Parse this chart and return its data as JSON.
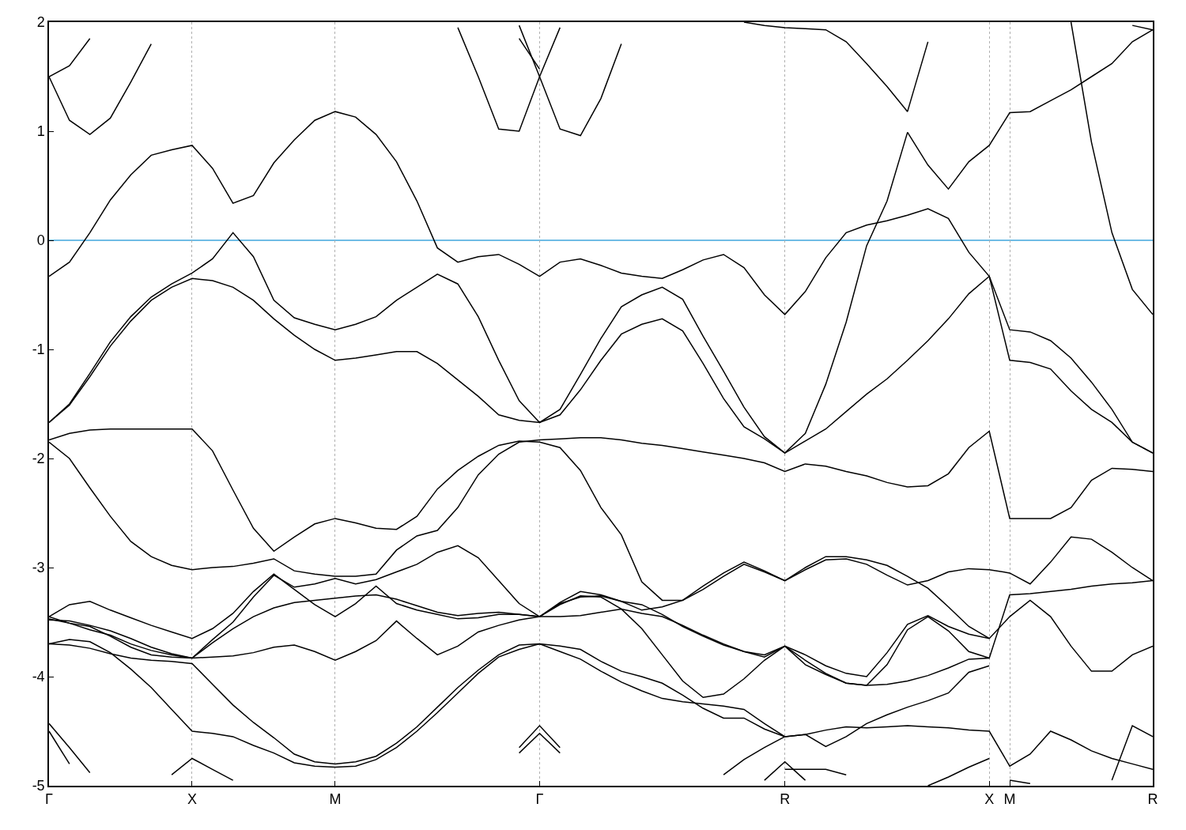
{
  "chart_data": {
    "type": "line",
    "categories": [
      "Γ",
      null,
      null,
      null,
      null,
      null,
      null,
      "X",
      null,
      null,
      null,
      null,
      null,
      null,
      "M",
      null,
      null,
      null,
      null,
      null,
      null,
      null,
      null,
      null,
      "Γ",
      null,
      null,
      null,
      null,
      null,
      null,
      null,
      null,
      null,
      null,
      null,
      "R",
      null,
      null,
      null,
      null,
      null,
      null,
      null,
      null,
      null,
      "X",
      "M",
      null,
      null,
      null,
      null,
      null,
      null,
      "R"
    ],
    "ylim": [
      -5,
      2
    ],
    "yticks": [
      -5,
      -4,
      -3,
      -2,
      -1,
      0,
      1,
      2
    ],
    "grid": "x",
    "ref_lines": [
      {
        "axis": "y",
        "value": 0,
        "color": "#3fa6dc"
      }
    ],
    "series": [
      {
        "color": "#000000",
        "values": [
          -0.33,
          -0.2,
          0.07,
          0.37,
          0.6,
          0.78,
          0.83,
          0.87,
          0.66,
          0.34,
          0.41,
          0.71,
          0.92,
          1.1,
          1.18,
          1.13,
          0.97,
          0.72,
          0.36,
          -0.07,
          -0.2,
          -0.15,
          -0.13,
          -0.22,
          -0.33,
          -0.2,
          -0.17,
          -0.23,
          -0.3,
          -0.33,
          -0.35,
          -0.27,
          -0.18,
          -0.13,
          -0.25,
          -0.5,
          -0.68,
          -0.47,
          -0.16,
          0.07,
          0.14,
          0.18,
          0.23,
          0.29,
          0.2,
          -0.11,
          -0.33,
          -0.82,
          -0.84,
          -0.92,
          -1.08,
          -1.3,
          -1.55,
          -1.85,
          -1.95
        ]
      },
      {
        "color": "#000000",
        "values": [
          -1.67,
          -1.5,
          -1.22,
          -0.93,
          -0.7,
          -0.52,
          -0.4,
          -0.3,
          -0.17,
          0.07,
          -0.15,
          -0.55,
          -0.71,
          -0.77,
          -0.82,
          -0.77,
          -0.7,
          -0.55,
          -0.43,
          -0.31,
          -0.4,
          -0.7,
          -1.1,
          -1.47,
          -1.67,
          -1.55,
          -1.23,
          -0.9,
          -0.61,
          -0.5,
          -0.43,
          -0.54,
          -0.88,
          -1.2,
          -1.53,
          -1.8,
          -1.95,
          -1.84,
          -1.73,
          -1.57,
          -1.41,
          -1.27,
          -1.1,
          -0.92,
          -0.72,
          -0.49,
          -0.33,
          -1.1,
          -1.12,
          -1.18,
          -1.38,
          -1.55,
          -1.67,
          -1.85,
          -1.95
        ]
      },
      {
        "color": "#000000",
        "values": [
          -1.67,
          -1.51,
          -1.25,
          -0.97,
          -0.74,
          -0.55,
          -0.43,
          -0.35,
          -0.37,
          -0.43,
          -0.55,
          -0.72,
          -0.87,
          -1.0,
          -1.1,
          -1.08,
          -1.05,
          -1.02,
          -1.02,
          -1.13,
          -1.28,
          -1.43,
          -1.6,
          -1.65,
          -1.67,
          -1.6,
          -1.37,
          -1.1,
          -0.86,
          -0.77,
          -0.72,
          -0.83,
          -1.13,
          -1.45,
          -1.71,
          -1.82,
          -1.95,
          -1.77,
          -1.32,
          -0.75,
          -0.05,
          0.36,
          0.99,
          0.69,
          0.47,
          0.72,
          0.87,
          1.17,
          1.18,
          1.28,
          1.38,
          1.5,
          1.62,
          1.82,
          1.93
        ]
      },
      {
        "color": "#000000",
        "values": [
          -1.83,
          -1.77,
          -1.74,
          -1.73,
          -1.73,
          -1.73,
          -1.73,
          -1.73,
          -1.93,
          -2.29,
          -2.64,
          -2.85,
          -2.72,
          -2.6,
          -2.55,
          -2.59,
          -2.64,
          -2.65,
          -2.53,
          -2.28,
          -2.11,
          -1.98,
          -1.88,
          -1.84,
          -1.85,
          -1.9,
          -2.11,
          -2.45,
          -2.7,
          -3.13,
          -3.3,
          -3.3,
          -3.2,
          -3.08,
          -2.97,
          -3.04,
          -3.12,
          -3.02,
          -2.93,
          -2.92,
          -2.97,
          -3.07,
          -3.16,
          -3.12,
          -3.04,
          -3.01,
          -3.02,
          -3.05,
          -3.15,
          -2.95,
          -2.72,
          -2.74,
          -2.86,
          -3.0,
          -3.12
        ]
      },
      {
        "color": "#000000",
        "values": [
          -1.85,
          -2.0,
          -2.27,
          -2.53,
          -2.76,
          -2.9,
          -2.98,
          -3.02,
          -3.0,
          -2.99,
          -2.96,
          -2.92,
          -3.03,
          -3.06,
          -3.08,
          -3.08,
          -3.06,
          -2.84,
          -2.71,
          -2.66,
          -2.45,
          -2.15,
          -1.96,
          -1.85,
          -1.83,
          -1.82,
          -1.81,
          -1.81,
          -1.83,
          -1.86,
          -1.88,
          -1.91,
          -1.94,
          -1.97,
          -2.0,
          -2.04,
          -2.12,
          -2.05,
          -2.07,
          -2.12,
          -2.16,
          -2.22,
          -2.26,
          -2.25,
          -2.14,
          -1.9,
          -1.75,
          -2.55,
          -2.55,
          -2.55,
          -2.45,
          -2.2,
          -2.09,
          -2.1,
          -2.12
        ]
      },
      {
        "color": "#000000",
        "values": [
          -3.45,
          -3.34,
          -3.31,
          -3.39,
          -3.46,
          -3.53,
          -3.59,
          -3.65,
          -3.56,
          -3.42,
          -3.22,
          -3.06,
          -3.2,
          -3.34,
          -3.45,
          -3.33,
          -3.17,
          -3.33,
          -3.39,
          -3.43,
          -3.47,
          -3.46,
          -3.43,
          -3.43,
          -3.45,
          -3.33,
          -3.27,
          -3.26,
          -3.31,
          -3.34,
          -3.43,
          -3.54,
          -3.63,
          -3.71,
          -3.77,
          -3.8,
          -3.72,
          -3.8,
          -3.9,
          -3.97,
          -4.0,
          -3.78,
          -3.52,
          -3.44,
          -3.54,
          -3.61,
          -3.65,
          -3.45,
          -3.3,
          -3.45,
          -3.72,
          -3.95,
          -3.95,
          -3.8,
          -3.72
        ]
      },
      {
        "color": "#000000",
        "values": [
          -3.48,
          -3.49,
          -3.53,
          -3.58,
          -3.65,
          -3.73,
          -3.79,
          -3.83,
          -3.69,
          -3.56,
          -3.45,
          -3.37,
          -3.32,
          -3.3,
          -3.28,
          -3.26,
          -3.25,
          -3.29,
          -3.35,
          -3.41,
          -3.44,
          -3.42,
          -3.41,
          -3.43,
          -3.45,
          -3.45,
          -3.44,
          -3.41,
          -3.38,
          -3.42,
          -3.45,
          -3.53,
          -3.62,
          -3.7,
          -3.77,
          -3.82,
          -3.72,
          -3.89,
          -3.98,
          -4.06,
          -4.08,
          -4.07,
          -4.04,
          -3.99,
          -3.92,
          -3.84,
          -3.83,
          -3.25,
          -3.24,
          -3.22,
          -3.2,
          -3.17,
          -3.15,
          -3.14,
          -3.12
        ]
      },
      {
        "color": "#000000",
        "values": [
          -3.7,
          -3.71,
          -3.74,
          -3.79,
          -3.83,
          -3.85,
          -3.86,
          -3.88,
          -4.07,
          -4.26,
          -4.42,
          -4.56,
          -4.71,
          -4.78,
          -4.8,
          -4.78,
          -4.73,
          -4.61,
          -4.46,
          -4.28,
          -4.1,
          -3.94,
          -3.8,
          -3.71,
          -3.7,
          -3.77,
          -3.84,
          -3.95,
          -4.05,
          -4.13,
          -4.2,
          -4.23,
          -4.25,
          -4.27,
          -4.3,
          -4.43,
          -4.55,
          -4.53,
          -4.49,
          -4.46,
          -4.47,
          -4.46,
          -4.45,
          -4.46,
          -4.47,
          -4.49,
          -4.5,
          -4.82,
          -4.71,
          -4.5,
          -4.58,
          -4.68,
          -4.75,
          -4.8,
          -4.85
        ]
      },
      {
        "color": "#000000",
        "values": [
          -3.7,
          -3.66,
          -3.68,
          -3.78,
          -3.93,
          -4.1,
          -4.3,
          -4.5,
          -4.52,
          -4.55,
          -4.63,
          -4.7,
          -4.79,
          -4.82,
          -4.83,
          -4.82,
          -4.76,
          -4.65,
          -4.5,
          -4.33,
          -4.15,
          -3.97,
          -3.82,
          -3.75,
          -3.7,
          -3.72,
          -3.75,
          -3.86,
          -3.95,
          -4.0,
          -4.06,
          -4.17,
          -4.29,
          -4.38,
          -4.38,
          -4.48,
          -4.55,
          -4.53,
          -4.64,
          -4.55,
          -4.43,
          -4.35,
          -4.28,
          -4.22,
          -4.15,
          -3.96,
          -3.9,
          null,
          null,
          null,
          null,
          null,
          null,
          null,
          null
        ]
      },
      {
        "color": "#000000",
        "values": [
          -3.47,
          -3.51,
          -3.54,
          -3.63,
          -3.73,
          -3.8,
          -3.82,
          -3.83,
          -3.82,
          -3.81,
          -3.78,
          -3.73,
          -3.71,
          -3.77,
          -3.85,
          -3.77,
          -3.67,
          -3.49,
          -3.65,
          -3.8,
          -3.72,
          -3.59,
          -3.53,
          -3.48,
          -3.45,
          -3.34,
          -3.26,
          -3.27,
          -3.38,
          -3.56,
          -3.8,
          -4.04,
          -4.19,
          -4.16,
          -4.02,
          -3.85,
          -3.72,
          -3.85,
          -3.97,
          -4.06,
          -4.08,
          -3.89,
          -3.57,
          -3.45,
          -3.58,
          -3.77,
          -3.83,
          null,
          null,
          null,
          null,
          null,
          null,
          null,
          null
        ]
      },
      {
        "color": "#000000",
        "values": [
          -3.45,
          -3.51,
          -3.57,
          -3.62,
          -3.7,
          -3.76,
          -3.8,
          -3.83,
          -3.66,
          -3.5,
          -3.27,
          -3.07,
          -3.18,
          -3.15,
          -3.1,
          -3.15,
          -3.11,
          -3.04,
          -2.97,
          -2.86,
          -2.8,
          -2.91,
          -3.12,
          -3.33,
          -3.45,
          -3.32,
          -3.22,
          -3.25,
          -3.31,
          -3.39,
          -3.36,
          -3.3,
          -3.17,
          -3.05,
          -2.95,
          -3.03,
          -3.12,
          -3.0,
          -2.9,
          -2.9,
          -2.93,
          -2.98,
          -3.08,
          -3.19,
          -3.36,
          -3.54,
          -3.65,
          null,
          null,
          null,
          null,
          null,
          null,
          null,
          null
        ]
      },
      {
        "color": "#000000",
        "values": [
          1.5,
          1.1,
          0.97,
          1.12,
          1.45,
          1.8,
          null,
          null,
          null,
          null,
          null,
          null,
          null,
          null,
          null,
          null,
          null,
          null,
          null,
          null,
          null,
          null,
          null,
          null,
          null,
          null,
          null,
          null,
          null,
          null,
          null,
          null,
          null,
          null,
          null,
          null,
          null,
          null,
          null,
          null,
          null,
          null,
          null,
          null,
          null,
          null,
          null,
          null,
          null,
          null,
          null,
          null,
          null,
          null,
          null
        ]
      },
      {
        "color": "#000000",
        "values": [
          1.5,
          1.6,
          1.85,
          null,
          null,
          null,
          null,
          null,
          null,
          null,
          null,
          null,
          null,
          null,
          null,
          null,
          null,
          null,
          null,
          null,
          null,
          null,
          null,
          null,
          null,
          null,
          null,
          null,
          null,
          null,
          null,
          null,
          null,
          null,
          null,
          null,
          null,
          null,
          null,
          null,
          null,
          null,
          null,
          null,
          null,
          null,
          null,
          null,
          null,
          null,
          null,
          null,
          null,
          null,
          null
        ]
      },
      {
        "color": "#000000",
        "values": [
          null,
          null,
          null,
          null,
          null,
          null,
          null,
          null,
          null,
          null,
          null,
          null,
          null,
          null,
          null,
          null,
          null,
          null,
          null,
          null,
          1.95,
          1.5,
          1.02,
          1.0,
          1.5,
          1.95,
          null,
          null,
          null,
          null,
          null,
          null,
          null,
          null,
          null,
          null,
          null,
          null,
          null,
          null,
          null,
          null,
          null,
          null,
          null,
          null,
          null,
          null,
          null,
          null,
          null,
          null,
          null,
          null,
          null
        ]
      },
      {
        "color": "#000000",
        "values": [
          null,
          null,
          null,
          null,
          null,
          null,
          null,
          null,
          null,
          null,
          null,
          null,
          null,
          null,
          null,
          null,
          null,
          null,
          null,
          null,
          null,
          null,
          null,
          1.97,
          1.5,
          1.02,
          0.96,
          1.3,
          1.8,
          null,
          null,
          null,
          null,
          null,
          null,
          null,
          null,
          null,
          null,
          null,
          null,
          null,
          null,
          null,
          null,
          null,
          null,
          null,
          null,
          null,
          null,
          null,
          null,
          null,
          null
        ]
      },
      {
        "color": "#000000",
        "values": [
          null,
          null,
          null,
          null,
          null,
          null,
          null,
          null,
          null,
          null,
          null,
          null,
          null,
          null,
          null,
          null,
          null,
          null,
          null,
          null,
          null,
          null,
          null,
          1.85,
          1.57,
          null,
          null,
          null,
          null,
          null,
          null,
          null,
          null,
          null,
          null,
          null,
          null,
          null,
          null,
          null,
          null,
          null,
          null,
          null,
          null,
          null,
          null,
          null,
          null,
          null,
          null,
          null,
          null,
          null,
          null
        ]
      },
      {
        "color": "#000000",
        "values": [
          null,
          null,
          null,
          null,
          null,
          null,
          null,
          null,
          null,
          null,
          null,
          null,
          null,
          null,
          null,
          null,
          null,
          null,
          null,
          null,
          null,
          null,
          null,
          null,
          null,
          null,
          null,
          null,
          null,
          null,
          null,
          null,
          null,
          null,
          2.0,
          1.97,
          1.95,
          1.94,
          1.93,
          1.82,
          1.62,
          1.41,
          1.18,
          1.82,
          null,
          null,
          null,
          null,
          null,
          null,
          null,
          null,
          null,
          null,
          null
        ]
      },
      {
        "color": "#000000",
        "values": [
          null,
          null,
          null,
          null,
          null,
          null,
          null,
          null,
          null,
          null,
          null,
          null,
          null,
          null,
          null,
          null,
          null,
          null,
          null,
          null,
          null,
          null,
          null,
          null,
          null,
          null,
          null,
          null,
          null,
          null,
          null,
          null,
          null,
          null,
          null,
          null,
          null,
          null,
          null,
          null,
          null,
          null,
          null,
          null,
          null,
          null,
          null,
          null,
          null,
          null,
          2.0,
          0.9,
          0.07,
          -0.45,
          -0.68
        ]
      },
      {
        "color": "#000000",
        "values": [
          null,
          null,
          null,
          null,
          null,
          null,
          null,
          null,
          null,
          null,
          null,
          null,
          null,
          null,
          null,
          null,
          null,
          null,
          null,
          null,
          null,
          null,
          null,
          null,
          null,
          null,
          null,
          null,
          null,
          null,
          null,
          null,
          null,
          null,
          null,
          null,
          null,
          null,
          null,
          null,
          null,
          null,
          null,
          null,
          null,
          null,
          null,
          null,
          null,
          null,
          null,
          null,
          null,
          1.97,
          1.93
        ]
      },
      {
        "color": "#000000",
        "values": [
          -4.43,
          -4.65,
          -4.88,
          null,
          null,
          null,
          null,
          null,
          null,
          null,
          null,
          null,
          null,
          null,
          null,
          null,
          null,
          null,
          null,
          null,
          null,
          null,
          null,
          null,
          null,
          null,
          null,
          null,
          null,
          null,
          null,
          null,
          null,
          null,
          null,
          null,
          null,
          null,
          null,
          null,
          null,
          null,
          null,
          null,
          null,
          null,
          null,
          null,
          null,
          null,
          null,
          null,
          null,
          null,
          null
        ]
      },
      {
        "color": "#000000",
        "values": [
          -4.5,
          -4.8,
          null,
          null,
          null,
          null,
          null,
          null,
          null,
          null,
          null,
          null,
          null,
          null,
          null,
          null,
          null,
          null,
          null,
          null,
          null,
          null,
          null,
          null,
          null,
          null,
          null,
          null,
          null,
          null,
          null,
          null,
          null,
          null,
          null,
          null,
          null,
          null,
          null,
          null,
          null,
          null,
          null,
          null,
          null,
          null,
          null,
          null,
          null,
          null,
          null,
          null,
          null,
          null,
          null
        ]
      },
      {
        "color": "#000000",
        "values": [
          null,
          null,
          null,
          null,
          null,
          null,
          null,
          null,
          null,
          null,
          null,
          null,
          null,
          null,
          null,
          null,
          null,
          null,
          null,
          null,
          null,
          null,
          null,
          -4.65,
          -4.45,
          -4.65,
          null,
          null,
          null,
          null,
          null,
          null,
          null,
          null,
          null,
          null,
          null,
          null,
          null,
          null,
          null,
          null,
          null,
          null,
          null,
          null,
          null,
          null,
          null,
          null,
          null,
          null,
          null,
          null,
          null
        ]
      },
      {
        "color": "#000000",
        "values": [
          null,
          null,
          null,
          null,
          null,
          null,
          null,
          null,
          null,
          null,
          null,
          null,
          null,
          null,
          null,
          null,
          null,
          null,
          null,
          null,
          null,
          null,
          null,
          -4.7,
          -4.52,
          -4.7,
          null,
          null,
          null,
          null,
          null,
          null,
          null,
          null,
          null,
          null,
          null,
          null,
          null,
          null,
          null,
          null,
          null,
          null,
          null,
          null,
          null,
          null,
          null,
          null,
          null,
          null,
          null,
          null,
          null
        ]
      },
      {
        "color": "#000000",
        "values": [
          null,
          null,
          null,
          null,
          null,
          null,
          -4.9,
          -4.75,
          -4.85,
          -4.95,
          null,
          null,
          null,
          null,
          null,
          null,
          null,
          null,
          null,
          null,
          null,
          null,
          null,
          null,
          null,
          null,
          null,
          null,
          null,
          null,
          null,
          null,
          null,
          null,
          null,
          null,
          null,
          null,
          null,
          null,
          null,
          null,
          null,
          null,
          null,
          null,
          null,
          null,
          null,
          null,
          null,
          null,
          null,
          null,
          null
        ]
      },
      {
        "color": "#000000",
        "values": [
          null,
          null,
          null,
          null,
          null,
          null,
          null,
          null,
          null,
          null,
          null,
          null,
          null,
          null,
          null,
          null,
          null,
          null,
          null,
          null,
          null,
          null,
          null,
          null,
          null,
          null,
          null,
          null,
          null,
          null,
          null,
          null,
          null,
          -4.9,
          -4.76,
          -4.65,
          -4.55,
          null,
          null,
          null,
          null,
          null,
          null,
          null,
          null,
          null,
          null,
          null,
          null,
          null,
          null,
          null,
          null,
          null,
          null
        ]
      },
      {
        "color": "#000000",
        "values": [
          null,
          null,
          null,
          null,
          null,
          null,
          null,
          null,
          null,
          null,
          null,
          null,
          null,
          null,
          null,
          null,
          null,
          null,
          null,
          null,
          null,
          null,
          null,
          null,
          null,
          null,
          null,
          null,
          null,
          null,
          null,
          null,
          null,
          null,
          null,
          -4.95,
          -4.78,
          -4.95,
          null,
          null,
          null,
          null,
          null,
          null,
          null,
          null,
          null,
          null,
          null,
          null,
          null,
          null,
          null,
          null,
          null
        ]
      },
      {
        "color": "#000000",
        "values": [
          null,
          null,
          null,
          null,
          null,
          null,
          null,
          null,
          null,
          null,
          null,
          null,
          null,
          null,
          null,
          null,
          null,
          null,
          null,
          null,
          null,
          null,
          null,
          null,
          null,
          null,
          null,
          null,
          null,
          null,
          null,
          null,
          null,
          null,
          null,
          null,
          -4.85,
          -4.85,
          -4.85,
          -4.9,
          null,
          null,
          null,
          null,
          null,
          null,
          null,
          null,
          null,
          null,
          null,
          null,
          null,
          null,
          null
        ]
      },
      {
        "color": "#000000",
        "values": [
          null,
          null,
          null,
          null,
          null,
          null,
          null,
          null,
          null,
          null,
          null,
          null,
          null,
          null,
          null,
          null,
          null,
          null,
          null,
          null,
          null,
          null,
          null,
          null,
          null,
          null,
          null,
          null,
          null,
          null,
          null,
          null,
          null,
          null,
          null,
          null,
          null,
          null,
          null,
          null,
          null,
          null,
          null,
          -5.0,
          -4.92,
          -4.83,
          -4.75,
          null,
          null,
          null,
          null,
          null,
          null,
          null,
          null
        ]
      },
      {
        "color": "#000000",
        "values": [
          null,
          null,
          null,
          null,
          null,
          null,
          null,
          null,
          null,
          null,
          null,
          null,
          null,
          null,
          null,
          null,
          null,
          null,
          null,
          null,
          null,
          null,
          null,
          null,
          null,
          null,
          null,
          null,
          null,
          null,
          null,
          null,
          null,
          null,
          null,
          null,
          null,
          null,
          null,
          null,
          null,
          null,
          null,
          null,
          null,
          null,
          null,
          -4.95,
          -4.98,
          null,
          null,
          null,
          null,
          null,
          null
        ]
      },
      {
        "color": "#000000",
        "values": [
          null,
          null,
          null,
          null,
          null,
          null,
          null,
          null,
          null,
          null,
          null,
          null,
          null,
          null,
          null,
          null,
          null,
          null,
          null,
          null,
          null,
          null,
          null,
          null,
          null,
          null,
          null,
          null,
          null,
          null,
          null,
          null,
          null,
          null,
          null,
          null,
          null,
          null,
          null,
          null,
          null,
          null,
          null,
          null,
          null,
          null,
          null,
          null,
          null,
          null,
          null,
          null,
          -4.95,
          -4.45,
          -4.55
        ]
      }
    ]
  }
}
